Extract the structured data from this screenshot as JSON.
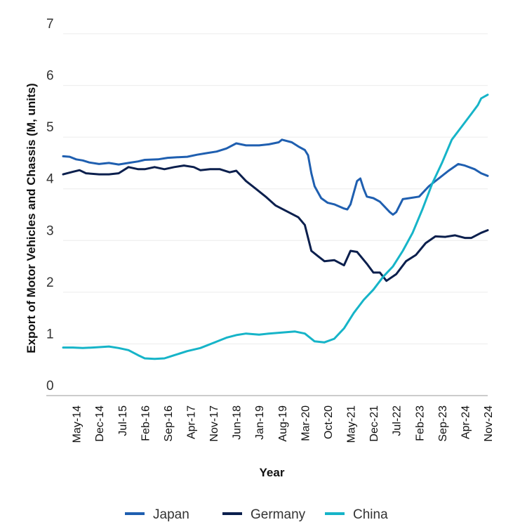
{
  "chart_data": {
    "type": "line",
    "title": "",
    "xlabel": "Year",
    "ylabel": "Export of Motor Vehicles and Chassis (M, units)",
    "ylim": [
      0,
      7
    ],
    "yticks": [
      "0",
      "1",
      "2",
      "3",
      "4",
      "5",
      "6",
      "7"
    ],
    "xlim": [
      "Jan-14",
      "Nov-24"
    ],
    "xticks": [
      {
        "label": "May-14",
        "date": "2014-05"
      },
      {
        "label": "Dec-14",
        "date": "2014-12"
      },
      {
        "label": "Jul-15",
        "date": "2015-07"
      },
      {
        "label": "Feb-16",
        "date": "2016-02"
      },
      {
        "label": "Sep-16",
        "date": "2016-09"
      },
      {
        "label": "Apr-17",
        "date": "2017-04"
      },
      {
        "label": "Nov-17",
        "date": "2017-11"
      },
      {
        "label": "Jun-18",
        "date": "2018-06"
      },
      {
        "label": "Jan-19",
        "date": "2019-01"
      },
      {
        "label": "Aug-19",
        "date": "2019-08"
      },
      {
        "label": "Mar-20",
        "date": "2020-03"
      },
      {
        "label": "Oct-20",
        "date": "2020-10"
      },
      {
        "label": "May-21",
        "date": "2021-05"
      },
      {
        "label": "Dec-21",
        "date": "2021-12"
      },
      {
        "label": "Jul-22",
        "date": "2022-07"
      },
      {
        "label": "Feb-23",
        "date": "2023-02"
      },
      {
        "label": "Sep-23",
        "date": "2023-09"
      },
      {
        "label": "Apr-24",
        "date": "2024-04"
      },
      {
        "label": "Nov-24",
        "date": "2024-11"
      }
    ],
    "grid": true,
    "legend_position": "bottom",
    "series": [
      {
        "name": "Japan",
        "color": "#1f5fb0",
        "points": [
          [
            "2014-01",
            4.63
          ],
          [
            "2014-03",
            4.62
          ],
          [
            "2014-05",
            4.57
          ],
          [
            "2014-07",
            4.55
          ],
          [
            "2014-09",
            4.51
          ],
          [
            "2014-12",
            4.48
          ],
          [
            "2015-03",
            4.5
          ],
          [
            "2015-06",
            4.47
          ],
          [
            "2015-09",
            4.5
          ],
          [
            "2015-12",
            4.53
          ],
          [
            "2016-02",
            4.56
          ],
          [
            "2016-06",
            4.57
          ],
          [
            "2016-09",
            4.6
          ],
          [
            "2016-12",
            4.61
          ],
          [
            "2017-03",
            4.62
          ],
          [
            "2017-06",
            4.66
          ],
          [
            "2017-09",
            4.69
          ],
          [
            "2017-12",
            4.72
          ],
          [
            "2018-03",
            4.78
          ],
          [
            "2018-06",
            4.88
          ],
          [
            "2018-09",
            4.84
          ],
          [
            "2019-01",
            4.84
          ],
          [
            "2019-04",
            4.86
          ],
          [
            "2019-07",
            4.9
          ],
          [
            "2019-08",
            4.95
          ],
          [
            "2019-11",
            4.9
          ],
          [
            "2020-01",
            4.82
          ],
          [
            "2020-03",
            4.75
          ],
          [
            "2020-04",
            4.65
          ],
          [
            "2020-05",
            4.3
          ],
          [
            "2020-06",
            4.05
          ],
          [
            "2020-08",
            3.82
          ],
          [
            "2020-10",
            3.73
          ],
          [
            "2020-12",
            3.7
          ],
          [
            "2021-03",
            3.62
          ],
          [
            "2021-04",
            3.6
          ],
          [
            "2021-05",
            3.7
          ],
          [
            "2021-07",
            4.15
          ],
          [
            "2021-08",
            4.2
          ],
          [
            "2021-09",
            4.0
          ],
          [
            "2021-10",
            3.85
          ],
          [
            "2021-12",
            3.82
          ],
          [
            "2022-02",
            3.75
          ],
          [
            "2022-05",
            3.55
          ],
          [
            "2022-06",
            3.5
          ],
          [
            "2022-07",
            3.55
          ],
          [
            "2022-09",
            3.8
          ],
          [
            "2022-11",
            3.82
          ],
          [
            "2023-02",
            3.85
          ],
          [
            "2023-05",
            4.05
          ],
          [
            "2023-08",
            4.2
          ],
          [
            "2023-11",
            4.35
          ],
          [
            "2024-02",
            4.48
          ],
          [
            "2024-04",
            4.45
          ],
          [
            "2024-07",
            4.38
          ],
          [
            "2024-09",
            4.3
          ],
          [
            "2024-11",
            4.25
          ]
        ]
      },
      {
        "name": "Germany",
        "color": "#0b1f4d",
        "points": [
          [
            "2014-01",
            4.28
          ],
          [
            "2014-04",
            4.33
          ],
          [
            "2014-06",
            4.36
          ],
          [
            "2014-08",
            4.3
          ],
          [
            "2014-12",
            4.28
          ],
          [
            "2015-03",
            4.28
          ],
          [
            "2015-06",
            4.3
          ],
          [
            "2015-09",
            4.42
          ],
          [
            "2015-12",
            4.38
          ],
          [
            "2016-02",
            4.38
          ],
          [
            "2016-05",
            4.42
          ],
          [
            "2016-08",
            4.38
          ],
          [
            "2016-11",
            4.42
          ],
          [
            "2017-02",
            4.45
          ],
          [
            "2017-05",
            4.42
          ],
          [
            "2017-07",
            4.36
          ],
          [
            "2017-10",
            4.38
          ],
          [
            "2018-01",
            4.38
          ],
          [
            "2018-04",
            4.32
          ],
          [
            "2018-06",
            4.35
          ],
          [
            "2018-09",
            4.15
          ],
          [
            "2018-12",
            4.0
          ],
          [
            "2019-03",
            3.85
          ],
          [
            "2019-06",
            3.68
          ],
          [
            "2019-09",
            3.58
          ],
          [
            "2020-01",
            3.45
          ],
          [
            "2020-03",
            3.3
          ],
          [
            "2020-05",
            2.8
          ],
          [
            "2020-07",
            2.7
          ],
          [
            "2020-09",
            2.6
          ],
          [
            "2020-12",
            2.62
          ],
          [
            "2021-03",
            2.52
          ],
          [
            "2021-05",
            2.8
          ],
          [
            "2021-07",
            2.78
          ],
          [
            "2021-10",
            2.55
          ],
          [
            "2021-12",
            2.38
          ],
          [
            "2022-02",
            2.38
          ],
          [
            "2022-04",
            2.22
          ],
          [
            "2022-07",
            2.35
          ],
          [
            "2022-10",
            2.6
          ],
          [
            "2023-01",
            2.72
          ],
          [
            "2023-04",
            2.95
          ],
          [
            "2023-07",
            3.08
          ],
          [
            "2023-10",
            3.07
          ],
          [
            "2024-01",
            3.1
          ],
          [
            "2024-04",
            3.05
          ],
          [
            "2024-06",
            3.05
          ],
          [
            "2024-09",
            3.15
          ],
          [
            "2024-11",
            3.2
          ]
        ]
      },
      {
        "name": "China",
        "color": "#16b4c8",
        "points": [
          [
            "2014-01",
            0.93
          ],
          [
            "2014-04",
            0.93
          ],
          [
            "2014-07",
            0.92
          ],
          [
            "2014-10",
            0.93
          ],
          [
            "2015-01",
            0.94
          ],
          [
            "2015-03",
            0.95
          ],
          [
            "2015-06",
            0.92
          ],
          [
            "2015-09",
            0.88
          ],
          [
            "2015-12",
            0.78
          ],
          [
            "2016-02",
            0.72
          ],
          [
            "2016-05",
            0.71
          ],
          [
            "2016-08",
            0.72
          ],
          [
            "2016-11",
            0.78
          ],
          [
            "2017-03",
            0.86
          ],
          [
            "2017-07",
            0.92
          ],
          [
            "2017-11",
            1.02
          ],
          [
            "2018-03",
            1.12
          ],
          [
            "2018-06",
            1.17
          ],
          [
            "2018-09",
            1.2
          ],
          [
            "2019-01",
            1.18
          ],
          [
            "2019-04",
            1.2
          ],
          [
            "2019-08",
            1.22
          ],
          [
            "2019-12",
            1.24
          ],
          [
            "2020-03",
            1.2
          ],
          [
            "2020-06",
            1.05
          ],
          [
            "2020-09",
            1.03
          ],
          [
            "2020-12",
            1.1
          ],
          [
            "2021-03",
            1.3
          ],
          [
            "2021-06",
            1.6
          ],
          [
            "2021-09",
            1.85
          ],
          [
            "2021-12",
            2.05
          ],
          [
            "2022-03",
            2.3
          ],
          [
            "2022-06",
            2.5
          ],
          [
            "2022-09",
            2.8
          ],
          [
            "2022-12",
            3.15
          ],
          [
            "2023-03",
            3.6
          ],
          [
            "2023-06",
            4.1
          ],
          [
            "2023-09",
            4.5
          ],
          [
            "2023-12",
            4.95
          ],
          [
            "2024-03",
            5.2
          ],
          [
            "2024-06",
            5.45
          ],
          [
            "2024-08",
            5.62
          ],
          [
            "2024-09",
            5.75
          ],
          [
            "2024-11",
            5.82
          ]
        ]
      }
    ]
  }
}
